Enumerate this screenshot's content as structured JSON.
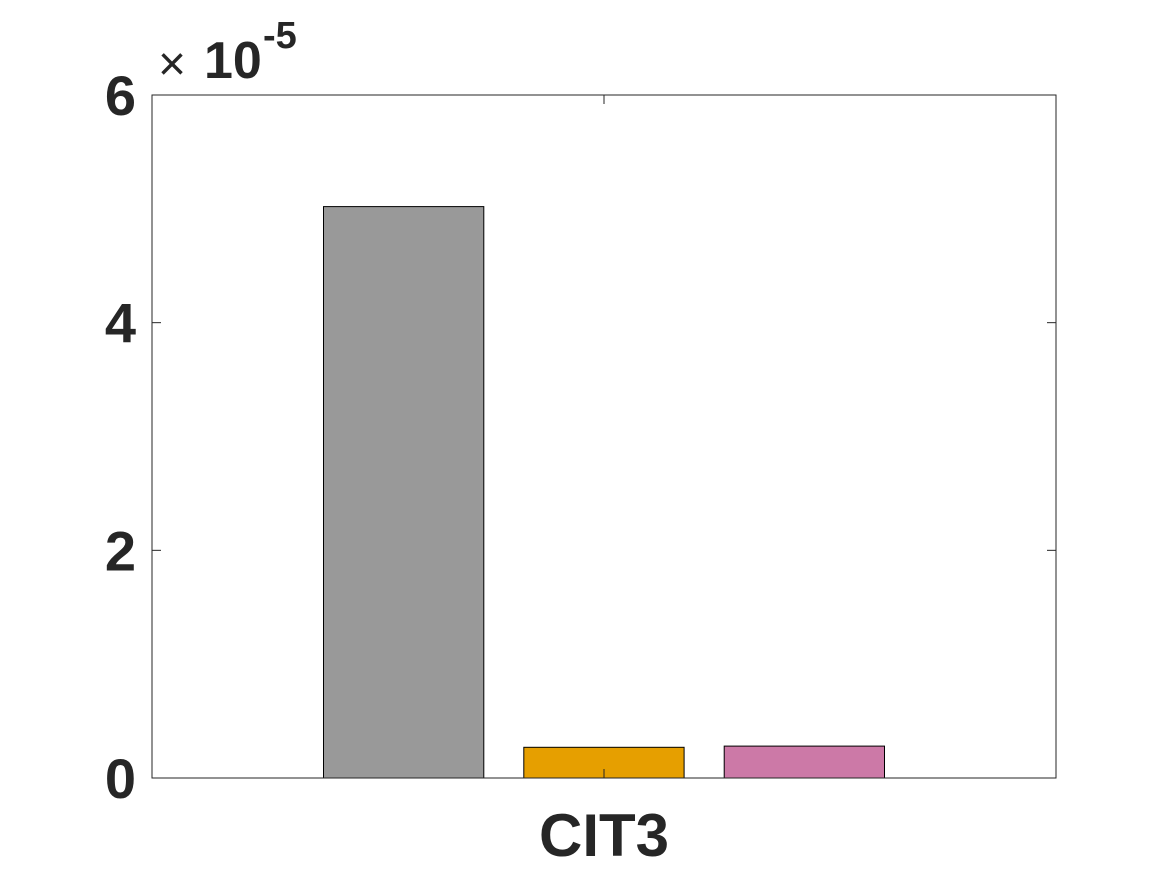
{
  "chart_data": {
    "type": "bar",
    "categories": [
      "CIT3"
    ],
    "series": [
      {
        "values": [
          5.02e-05
        ],
        "color": "#999999"
      },
      {
        "values": [
          2.7e-06
        ],
        "color": "#E69F00"
      },
      {
        "values": [
          2.8e-06
        ],
        "color": "#CC79A7"
      }
    ],
    "ylim": [
      0,
      6e-05
    ],
    "yticks": [
      0,
      2,
      4,
      6
    ],
    "ytick_labels": [
      "0",
      "2",
      "4",
      "6"
    ],
    "y_exponent": {
      "times": "×",
      "base": "10",
      "power": "-5"
    },
    "xlabel": "",
    "ylabel": "",
    "title": "",
    "grid": false,
    "box": true
  }
}
